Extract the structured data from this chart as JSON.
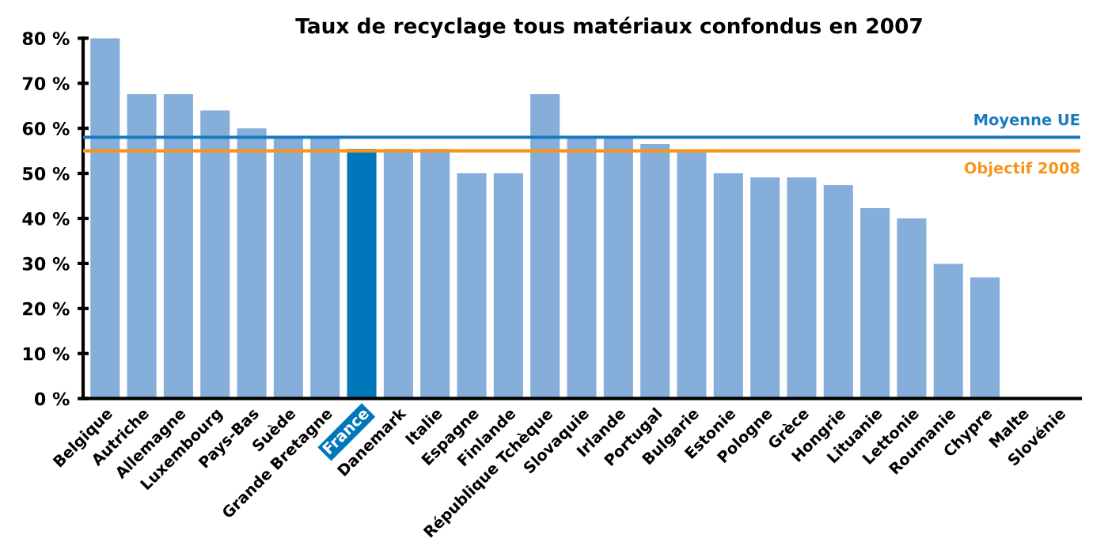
{
  "chart_data": {
    "type": "bar",
    "title": "Taux de recyclage tous matériaux confondus en 2007",
    "categories": [
      "Belgique",
      "Autriche",
      "Allemagne",
      "Luxembourg",
      "Pays-Bas",
      "Suède",
      "Grande Bretagne",
      "France",
      "Danemark",
      "Italie",
      "Espagne",
      "Finlande",
      "République Tchèque",
      "Slovaquie",
      "Irlande",
      "Portugal",
      "Bulgarie",
      "Estonie",
      "Pologne",
      "Grèce",
      "Hongrie",
      "Lituanie",
      "Lettonie",
      "Roumanie",
      "Chypre",
      "Malte",
      "Slovénie"
    ],
    "values": [
      80,
      67.6,
      67.6,
      64,
      60,
      58,
      58,
      55.4,
      55.4,
      55.4,
      50,
      50,
      67.6,
      58,
      58,
      56.5,
      54.7,
      50,
      49.1,
      49.1,
      47.4,
      42.3,
      40,
      29.9,
      26.9,
      null,
      null
    ],
    "colors": [
      "#85aedb",
      "#85aedb",
      "#85aedb",
      "#85aedb",
      "#85aedb",
      "#85aedb",
      "#85aedb",
      "#0077bb",
      "#85aedb",
      "#85aedb",
      "#85aedb",
      "#85aedb",
      "#85aedb",
      "#85aedb",
      "#85aedb",
      "#85aedb",
      "#85aedb",
      "#85aedb",
      "#85aedb",
      "#85aedb",
      "#85aedb",
      "#85aedb",
      "#85aedb",
      "#85aedb",
      "#85aedb",
      "#85aedb",
      "#85aedb"
    ],
    "ylim": [
      0,
      80
    ],
    "yticks": [
      {
        "value": 0,
        "label": "0 %"
      },
      {
        "value": 10,
        "label": "10 %"
      },
      {
        "value": 20,
        "label": "20 %"
      },
      {
        "value": 30,
        "label": "30 %"
      },
      {
        "value": 40,
        "label": "40 %"
      },
      {
        "value": 50,
        "label": "50 %"
      },
      {
        "value": 60,
        "label": "60 %"
      },
      {
        "value": 70,
        "label": "70 %"
      },
      {
        "value": 80,
        "label": "80 %"
      }
    ],
    "ref_lines": [
      {
        "axis": "y",
        "value": 58,
        "label": "Moyenne UE",
        "color": "#1a7abf"
      },
      {
        "axis": "y",
        "value": 55,
        "label": "Objectif 2008",
        "color": "#f7941d"
      }
    ],
    "grid": false,
    "legend": false
  }
}
